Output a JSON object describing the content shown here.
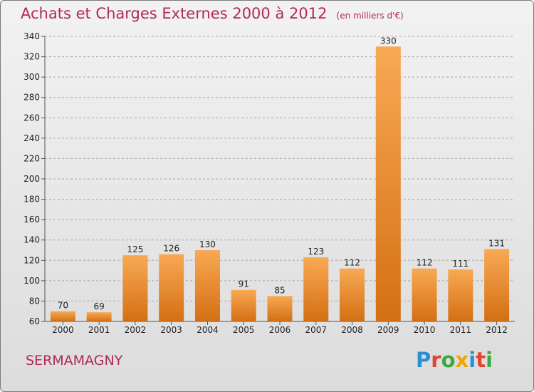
{
  "header": {
    "title": "Achats et Charges Externes 2000 à 2012",
    "unit": "(en milliers d'€)"
  },
  "footer": {
    "town": "SERMAMAGNY",
    "logo_letters": [
      "P",
      "r",
      "o",
      "x",
      "i",
      "t",
      "i"
    ],
    "logo_colors": [
      "#2a8fd6",
      "#e0452f",
      "#3bab3f",
      "#f0a400",
      "#2a8fd6",
      "#e0452f",
      "#3bab3f"
    ]
  },
  "colors": {
    "bar_light": "#f8a954",
    "bar_dark": "#d46f13",
    "title": "#b2285d"
  },
  "chart_data": {
    "type": "bar",
    "categories": [
      "2000",
      "2001",
      "2002",
      "2003",
      "2004",
      "2005",
      "2006",
      "2007",
      "2008",
      "2009",
      "2010",
      "2011",
      "2012"
    ],
    "values": [
      70,
      69,
      125,
      126,
      130,
      91,
      85,
      123,
      112,
      330,
      112,
      111,
      131
    ],
    "ylim": [
      60,
      340
    ],
    "yticks": [
      60,
      80,
      100,
      120,
      140,
      160,
      180,
      200,
      220,
      240,
      260,
      280,
      300,
      320,
      340
    ],
    "grid": true
  }
}
